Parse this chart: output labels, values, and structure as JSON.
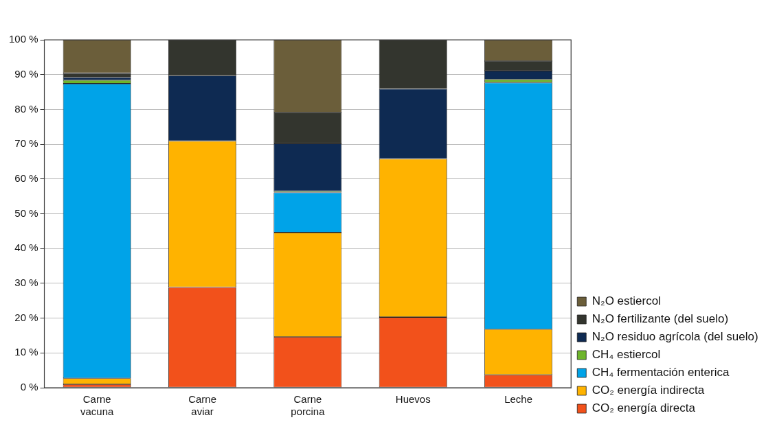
{
  "chart_data": {
    "type": "bar",
    "stacked": true,
    "categories": [
      "Carne vacuna",
      "Carne aviar",
      "Carne porcina",
      "Huevos",
      "Leche"
    ],
    "series": [
      {
        "name": "CO₂ energía directa",
        "color": "#f2511b",
        "values": [
          1.0,
          28.9,
          14.6,
          20.3,
          3.7
        ]
      },
      {
        "name": "CO₂ energía indirecta",
        "color": "#ffb300",
        "values": [
          1.7,
          42.0,
          30.0,
          45.5,
          13.1
        ]
      },
      {
        "name": "CH₄ fermentación enterica",
        "color": "#00a3e8",
        "values": [
          84.7,
          0,
          11.5,
          0,
          70.9
        ]
      },
      {
        "name": "CH₄ estiercol",
        "color": "#6db52b",
        "values": [
          1.0,
          0,
          0.4,
          0,
          0.9
        ]
      },
      {
        "name": "N₂O residuo agrícola (del suelo)",
        "color": "#0e2a52",
        "values": [
          0.8,
          18.8,
          13.7,
          20.1,
          2.5
        ]
      },
      {
        "name": "N₂O fertilizante (del suelo)",
        "color": "#33352e",
        "values": [
          1.2,
          10.3,
          8.9,
          14.1,
          2.8
        ]
      },
      {
        "name": "N₂O estiercol",
        "color": "#6b5e3a",
        "values": [
          9.6,
          0,
          20.9,
          0,
          6.1
        ]
      }
    ],
    "ylim": [
      0,
      100
    ],
    "yticks": [
      {
        "value": 0,
        "label": "0 %"
      },
      {
        "value": 10,
        "label": "10 %"
      },
      {
        "value": 20,
        "label": "20 %"
      },
      {
        "value": 30,
        "label": "30 %"
      },
      {
        "value": 40,
        "label": "40 %"
      },
      {
        "value": 50,
        "label": "50 %"
      },
      {
        "value": 60,
        "label": "60 %"
      },
      {
        "value": 70,
        "label": "70 %"
      },
      {
        "value": 80,
        "label": "80 %"
      },
      {
        "value": 90,
        "label": "90 %"
      },
      {
        "value": 100,
        "label": "100 %"
      }
    ],
    "grid": "y",
    "legend": "bottom right"
  }
}
